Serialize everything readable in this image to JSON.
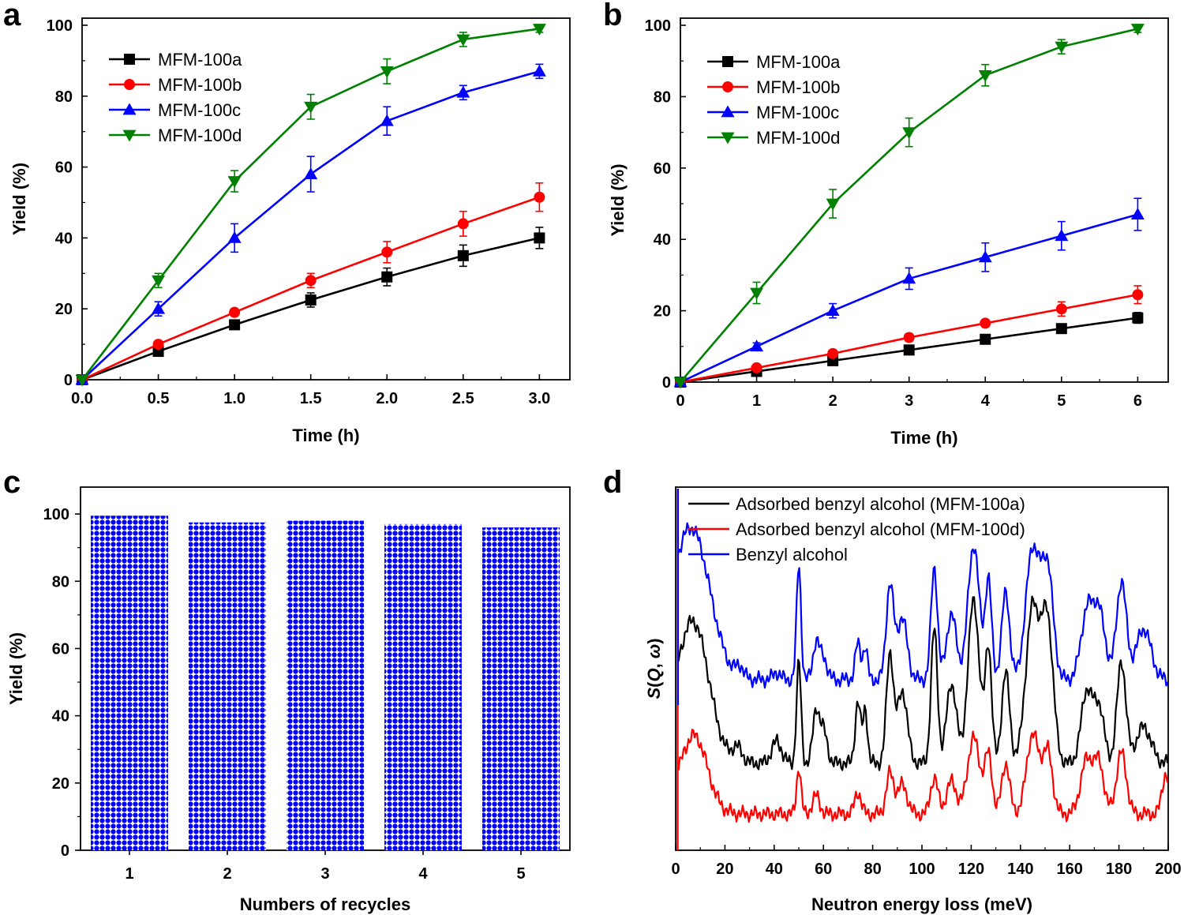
{
  "chart_data": [
    {
      "panel": "a",
      "type": "line",
      "xlabel": "Time (h)",
      "ylabel": "Yield (%)",
      "xlim": [
        0,
        3.2
      ],
      "ylim": [
        0,
        102
      ],
      "xticks": [
        "0.0",
        "0.5",
        "1.0",
        "1.5",
        "2.0",
        "2.5",
        "3.0"
      ],
      "yticks": [
        "0",
        "20",
        "40",
        "60",
        "80",
        "100"
      ],
      "x": [
        0,
        0.5,
        1.0,
        1.5,
        2.0,
        2.5,
        3.0
      ],
      "legend_position": "top-left",
      "series": [
        {
          "name": "MFM-100a",
          "color": "#000000",
          "marker": "square",
          "values": [
            0,
            8,
            15.5,
            22.5,
            29,
            35,
            40
          ],
          "errors": [
            0,
            0.8,
            1,
            2,
            2.5,
            3,
            3
          ]
        },
        {
          "name": "MFM-100b",
          "color": "#ff0000",
          "marker": "circle",
          "values": [
            0,
            10,
            19,
            28,
            36,
            44,
            51.5
          ],
          "errors": [
            0,
            0.8,
            1,
            2,
            3,
            3.5,
            4
          ]
        },
        {
          "name": "MFM-100c",
          "color": "#0000ff",
          "marker": "triangle-up",
          "values": [
            0,
            20,
            40,
            58,
            73,
            81,
            87
          ],
          "errors": [
            0,
            2,
            4,
            5,
            4,
            2,
            2
          ]
        },
        {
          "name": "MFM-100d",
          "color": "#008000",
          "marker": "triangle-down",
          "values": [
            0,
            28,
            56,
            77,
            87,
            96,
            99
          ],
          "errors": [
            0,
            2,
            3,
            3.5,
            3.5,
            2,
            1
          ]
        }
      ]
    },
    {
      "panel": "b",
      "type": "line",
      "xlabel": "Time (h)",
      "ylabel": "Yield (%)",
      "xlim": [
        0,
        6.4
      ],
      "ylim": [
        0,
        102
      ],
      "xticks": [
        "0",
        "1",
        "2",
        "3",
        "4",
        "5",
        "6"
      ],
      "yticks": [
        "0",
        "20",
        "40",
        "60",
        "80",
        "100"
      ],
      "x": [
        0,
        1,
        2,
        3,
        4,
        5,
        6
      ],
      "legend_position": "top-left",
      "series": [
        {
          "name": "MFM-100a",
          "color": "#000000",
          "marker": "square",
          "values": [
            0,
            3,
            6,
            9,
            12,
            15,
            18
          ],
          "errors": [
            0,
            0.5,
            0.8,
            1,
            1,
            1.2,
            1.5
          ]
        },
        {
          "name": "MFM-100b",
          "color": "#ff0000",
          "marker": "circle",
          "values": [
            0,
            4,
            8,
            12.5,
            16.5,
            20.5,
            24.5
          ],
          "errors": [
            0,
            0.5,
            1,
            1,
            1,
            2,
            2.5
          ]
        },
        {
          "name": "MFM-100c",
          "color": "#0000ff",
          "marker": "triangle-up",
          "values": [
            0,
            10,
            20,
            29,
            35,
            41,
            47
          ],
          "errors": [
            0,
            1,
            2,
            3,
            4,
            4,
            4.5
          ]
        },
        {
          "name": "MFM-100d",
          "color": "#008000",
          "marker": "triangle-down",
          "values": [
            0,
            25,
            50,
            70,
            86,
            94,
            99
          ],
          "errors": [
            0,
            3,
            4,
            4,
            3,
            2,
            1
          ]
        }
      ]
    },
    {
      "panel": "c",
      "type": "bar",
      "xlabel": "Numbers of recycles",
      "ylabel": "Yield (%)",
      "ylim": [
        0,
        108
      ],
      "categories": [
        "1",
        "2",
        "3",
        "4",
        "5"
      ],
      "values": [
        99.5,
        97.5,
        98,
        97,
        96
      ],
      "yticks": [
        "0",
        "20",
        "40",
        "60",
        "80",
        "100"
      ],
      "fill": "#0000ff",
      "pattern": "crosshatch"
    },
    {
      "panel": "d",
      "type": "line",
      "xlabel": "Neutron energy loss (meV)",
      "ylabel": "S(Q, ω)",
      "ylabel_parts": [
        "S",
        "(",
        "Q",
        ", ",
        "ω",
        ")"
      ],
      "xlim": [
        0,
        200
      ],
      "xticks": [
        "0",
        "20",
        "40",
        "60",
        "80",
        "100",
        "120",
        "140",
        "160",
        "180",
        "200"
      ],
      "yticks_shown": false,
      "legend_position": "top-left",
      "series": [
        {
          "name": "Adsorbed benzyl alcohol (MFM-100a)",
          "color": "#000000",
          "baseline": 24,
          "peaks": [
            [
              2,
              14,
              8
            ],
            [
              8,
              28,
              6
            ],
            [
              25,
              4,
              2
            ],
            [
              41,
              6,
              2
            ],
            [
              50,
              28,
              0.9
            ],
            [
              57,
              14,
              1.3
            ],
            [
              60,
              9,
              1.5
            ],
            [
              74,
              17,
              1.1
            ],
            [
              77,
              15,
              0.9
            ],
            [
              87,
              30,
              1.4
            ],
            [
              92,
              20,
              2
            ],
            [
              105,
              37,
              1.3
            ],
            [
              112,
              22,
              2
            ],
            [
              121,
              45,
              2.3
            ],
            [
              127,
              32,
              1.3
            ],
            [
              134,
              25,
              1.6
            ],
            [
              145,
              43,
              2.8
            ],
            [
              151,
              38,
              2.3
            ],
            [
              167,
              20,
              2.3
            ],
            [
              172,
              15,
              2
            ],
            [
              181,
              28,
              1.8
            ],
            [
              190,
              10,
              3
            ]
          ]
        },
        {
          "name": "Adsorbed benzyl alcohol (MFM-100d)",
          "color": "#ff0000",
          "baseline": 10,
          "peaks": [
            [
              2,
              6,
              8
            ],
            [
              8,
              17,
              5
            ],
            [
              50,
              13,
              0.9
            ],
            [
              57,
              5,
              1.5
            ],
            [
              74,
              6,
              1.3
            ],
            [
              87,
              11,
              1.5
            ],
            [
              92,
              8,
              2
            ],
            [
              105,
              10,
              1.5
            ],
            [
              112,
              9,
              2
            ],
            [
              121,
              21,
              2.5
            ],
            [
              127,
              16,
              1.5
            ],
            [
              134,
              14,
              1.6
            ],
            [
              145,
              22,
              2.5
            ],
            [
              151,
              17,
              2
            ],
            [
              167,
              15,
              2.5
            ],
            [
              172,
              13,
              2
            ],
            [
              181,
              17,
              2
            ],
            [
              199,
              11,
              1.5
            ]
          ]
        },
        {
          "name": "Benzyl alcohol",
          "color": "#0000ff",
          "baseline": 47,
          "peaks": [
            [
              2,
              18,
              8
            ],
            [
              8,
              27,
              7
            ],
            [
              26,
              3,
              1.5
            ],
            [
              41,
              2,
              1.5
            ],
            [
              50,
              32,
              0.9
            ],
            [
              57,
              10,
              1.3
            ],
            [
              60,
              6,
              1.5
            ],
            [
              74,
              10,
              1.1
            ],
            [
              77,
              9,
              0.9
            ],
            [
              87,
              26,
              1.5
            ],
            [
              92,
              17,
              2
            ],
            [
              105,
              31,
              1.3
            ],
            [
              112,
              18,
              2
            ],
            [
              121,
              37,
              2.3
            ],
            [
              127,
              27,
              1.3
            ],
            [
              134,
              24,
              1.6
            ],
            [
              145,
              36,
              2.8
            ],
            [
              151,
              30,
              2.3
            ],
            [
              167,
              18,
              2.5
            ],
            [
              172,
              18,
              2.5
            ],
            [
              181,
              27,
              2
            ],
            [
              190,
              14,
              3
            ]
          ]
        }
      ]
    }
  ]
}
